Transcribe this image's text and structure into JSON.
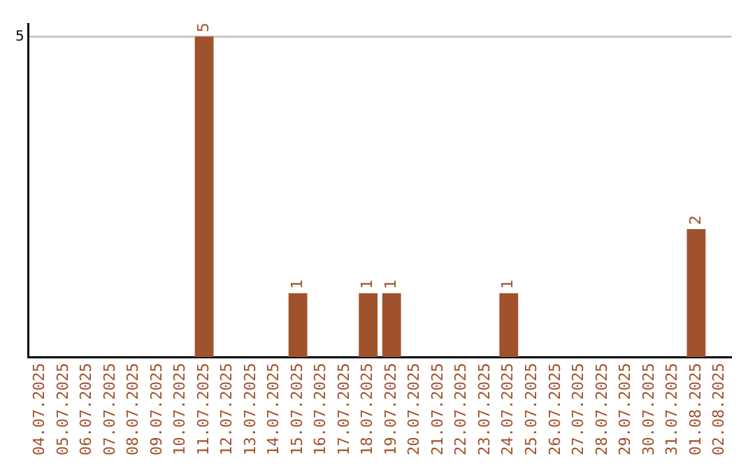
{
  "chart_data": {
    "type": "bar",
    "categories": [
      "04.07.2025",
      "05.07.2025",
      "06.07.2025",
      "07.07.2025",
      "08.07.2025",
      "09.07.2025",
      "10.07.2025",
      "11.07.2025",
      "12.07.2025",
      "13.07.2025",
      "14.07.2025",
      "15.07.2025",
      "16.07.2025",
      "17.07.2025",
      "18.07.2025",
      "19.07.2025",
      "20.07.2025",
      "21.07.2025",
      "22.07.2025",
      "23.07.2025",
      "24.07.2025",
      "25.07.2025",
      "26.07.2025",
      "27.07.2025",
      "28.07.2025",
      "29.07.2025",
      "30.07.2025",
      "31.07.2025",
      "01.08.2025",
      "02.08.2025"
    ],
    "values": [
      0,
      0,
      0,
      0,
      0,
      0,
      0,
      5,
      0,
      0,
      0,
      1,
      0,
      0,
      1,
      1,
      0,
      0,
      0,
      0,
      1,
      0,
      0,
      0,
      0,
      0,
      0,
      0,
      2,
      0
    ],
    "value_labels": [
      null,
      null,
      null,
      null,
      null,
      null,
      null,
      "5",
      null,
      null,
      null,
      "1",
      null,
      null,
      "1",
      "1",
      null,
      null,
      null,
      null,
      "1",
      null,
      null,
      null,
      null,
      null,
      null,
      null,
      "2",
      null
    ],
    "color": "#a0522d",
    "ylim": [
      0,
      5.2
    ],
    "yticks": [
      5
    ],
    "grid": "y",
    "legend": false
  }
}
